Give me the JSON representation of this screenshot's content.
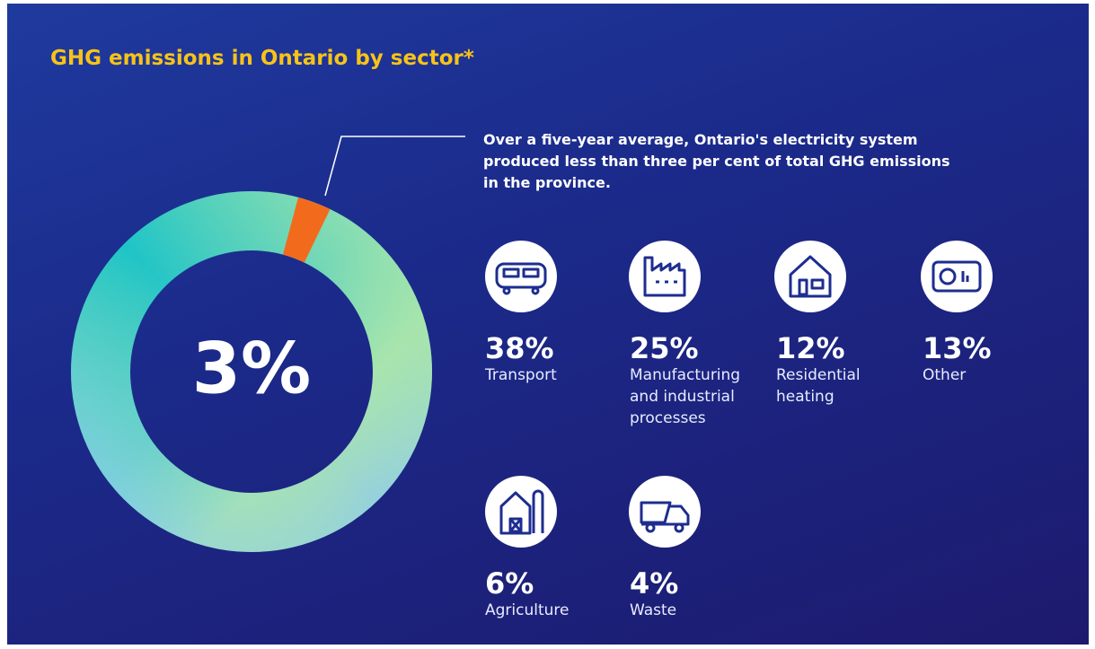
{
  "chart_data": {
    "type": "donut",
    "title": "GHG emissions in Ontario by sector*",
    "annotation": "Over a five-year average, Ontario's electricity system produced less than three per cent of total GHG emissions in the province.",
    "values": [
      3
    ],
    "value_labels": [
      "3%"
    ],
    "color": "#f26b1d"
  },
  "sectors": [
    {
      "value": "38%",
      "label": "Transport"
    },
    {
      "value": "25%",
      "label": "Manufacturing and industrial processes"
    },
    {
      "value": "12%",
      "label": "Residential heating"
    },
    {
      "value": "13%",
      "label": "Other"
    },
    {
      "value": "6%",
      "label": "Agriculture"
    },
    {
      "value": "4%",
      "label": "Waste"
    }
  ]
}
